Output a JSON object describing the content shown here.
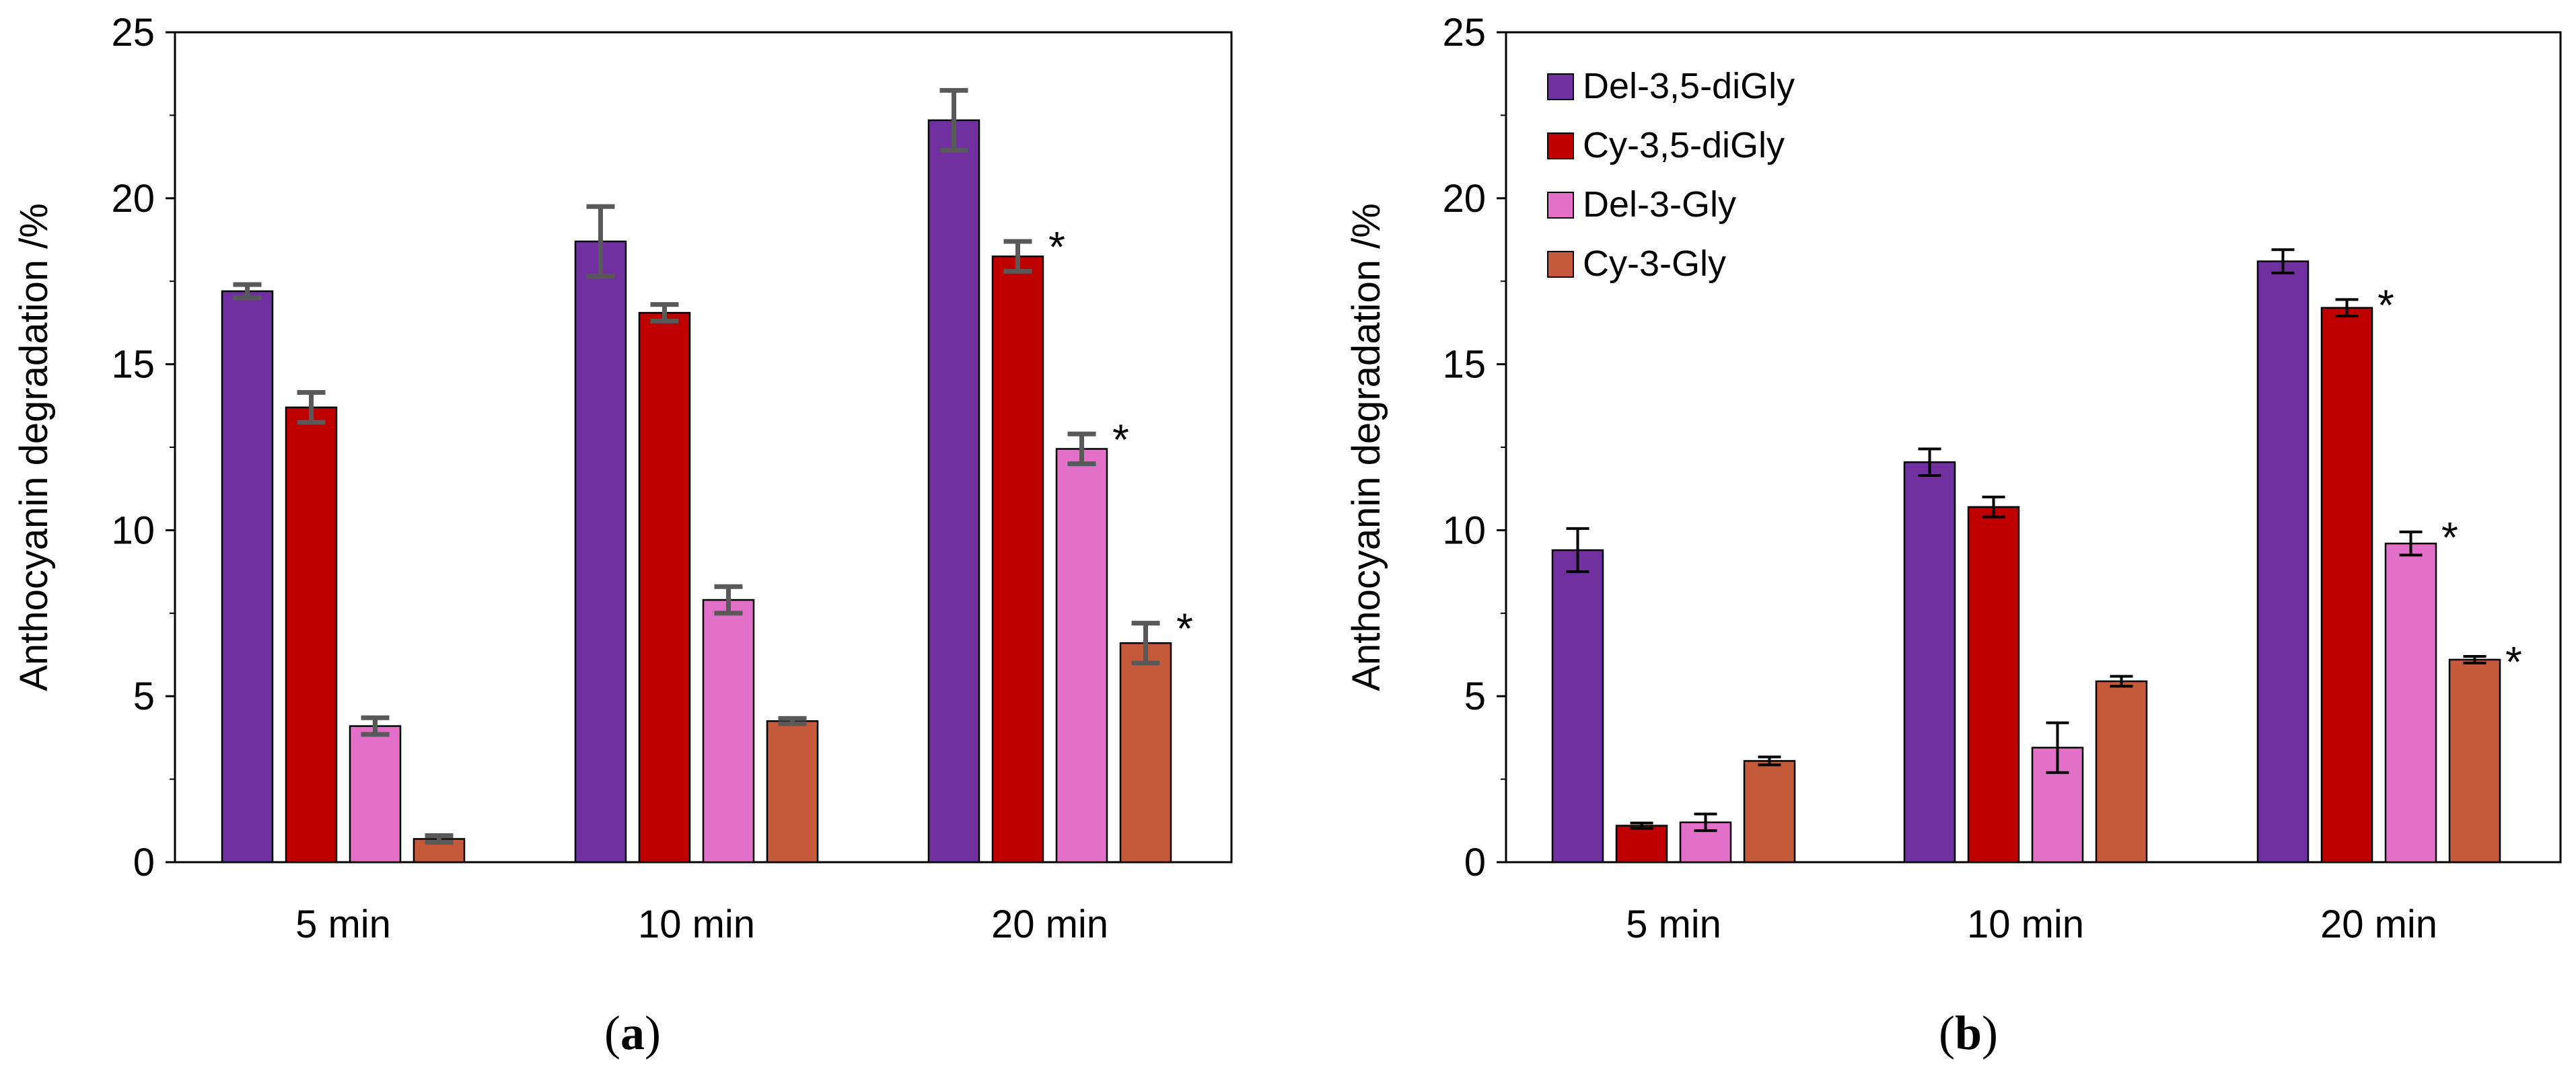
{
  "figure_labels": [
    "(a)",
    "(b)"
  ],
  "colors": {
    "Del-3,5-diGly": "#7030A0",
    "Cy-3,5-diGly": "#C00000",
    "Del-3-Gly": "#E26FC8",
    "Cy-3-Gly": "#C55A3A",
    "error_a": "#595959",
    "error_b": "#000000"
  },
  "chart_data": [
    {
      "panel": "(a)",
      "type": "bar",
      "ylabel": "Anthocyanin degradation  /%",
      "xlabel": "",
      "ylim": [
        0,
        25
      ],
      "yticks": [
        0,
        5,
        10,
        15,
        20,
        25
      ],
      "grid": false,
      "legend": "none",
      "categories": [
        "5 min",
        "10 min",
        "20 min"
      ],
      "series": [
        {
          "name": "Del-3,5-diGly",
          "values": [
            17.2,
            18.7,
            22.35
          ],
          "errors": [
            0.2,
            1.05,
            0.9
          ],
          "significant": [
            false,
            false,
            false
          ]
        },
        {
          "name": "Cy-3,5-diGly",
          "values": [
            13.7,
            16.55,
            18.25
          ],
          "errors": [
            0.45,
            0.25,
            0.45
          ],
          "significant": [
            false,
            false,
            true
          ]
        },
        {
          "name": "Del-3-Gly",
          "values": [
            4.1,
            7.9,
            12.45
          ],
          "errors": [
            0.25,
            0.4,
            0.45
          ],
          "significant": [
            false,
            false,
            true
          ]
        },
        {
          "name": "Cy-3-Gly",
          "values": [
            0.7,
            4.25,
            6.6
          ],
          "errors": [
            0.1,
            0.08,
            0.6
          ],
          "significant": [
            false,
            false,
            true
          ]
        }
      ],
      "significance_marker": "*"
    },
    {
      "panel": "(b)",
      "type": "bar",
      "ylabel": "Anthocyanin degradation  /%",
      "xlabel": "",
      "ylim": [
        0,
        25
      ],
      "yticks": [
        0,
        5,
        10,
        15,
        20,
        25
      ],
      "grid": false,
      "legend": "top-left",
      "categories": [
        "5 min",
        "10 min",
        "20 min"
      ],
      "series": [
        {
          "name": "Del-3,5-diGly",
          "values": [
            9.4,
            12.05,
            18.1
          ],
          "errors": [
            0.65,
            0.4,
            0.35
          ],
          "significant": [
            false,
            false,
            false
          ]
        },
        {
          "name": "Cy-3,5-diGly",
          "values": [
            1.1,
            10.7,
            16.7
          ],
          "errors": [
            0.08,
            0.3,
            0.25
          ],
          "significant": [
            false,
            false,
            true
          ]
        },
        {
          "name": "Del-3-Gly",
          "values": [
            1.2,
            3.45,
            9.6
          ],
          "errors": [
            0.25,
            0.75,
            0.35
          ],
          "significant": [
            false,
            false,
            true
          ]
        },
        {
          "name": "Cy-3-Gly",
          "values": [
            3.05,
            5.45,
            6.1
          ],
          "errors": [
            0.12,
            0.15,
            0.1
          ],
          "significant": [
            false,
            false,
            true
          ]
        }
      ],
      "significance_marker": "*"
    }
  ]
}
